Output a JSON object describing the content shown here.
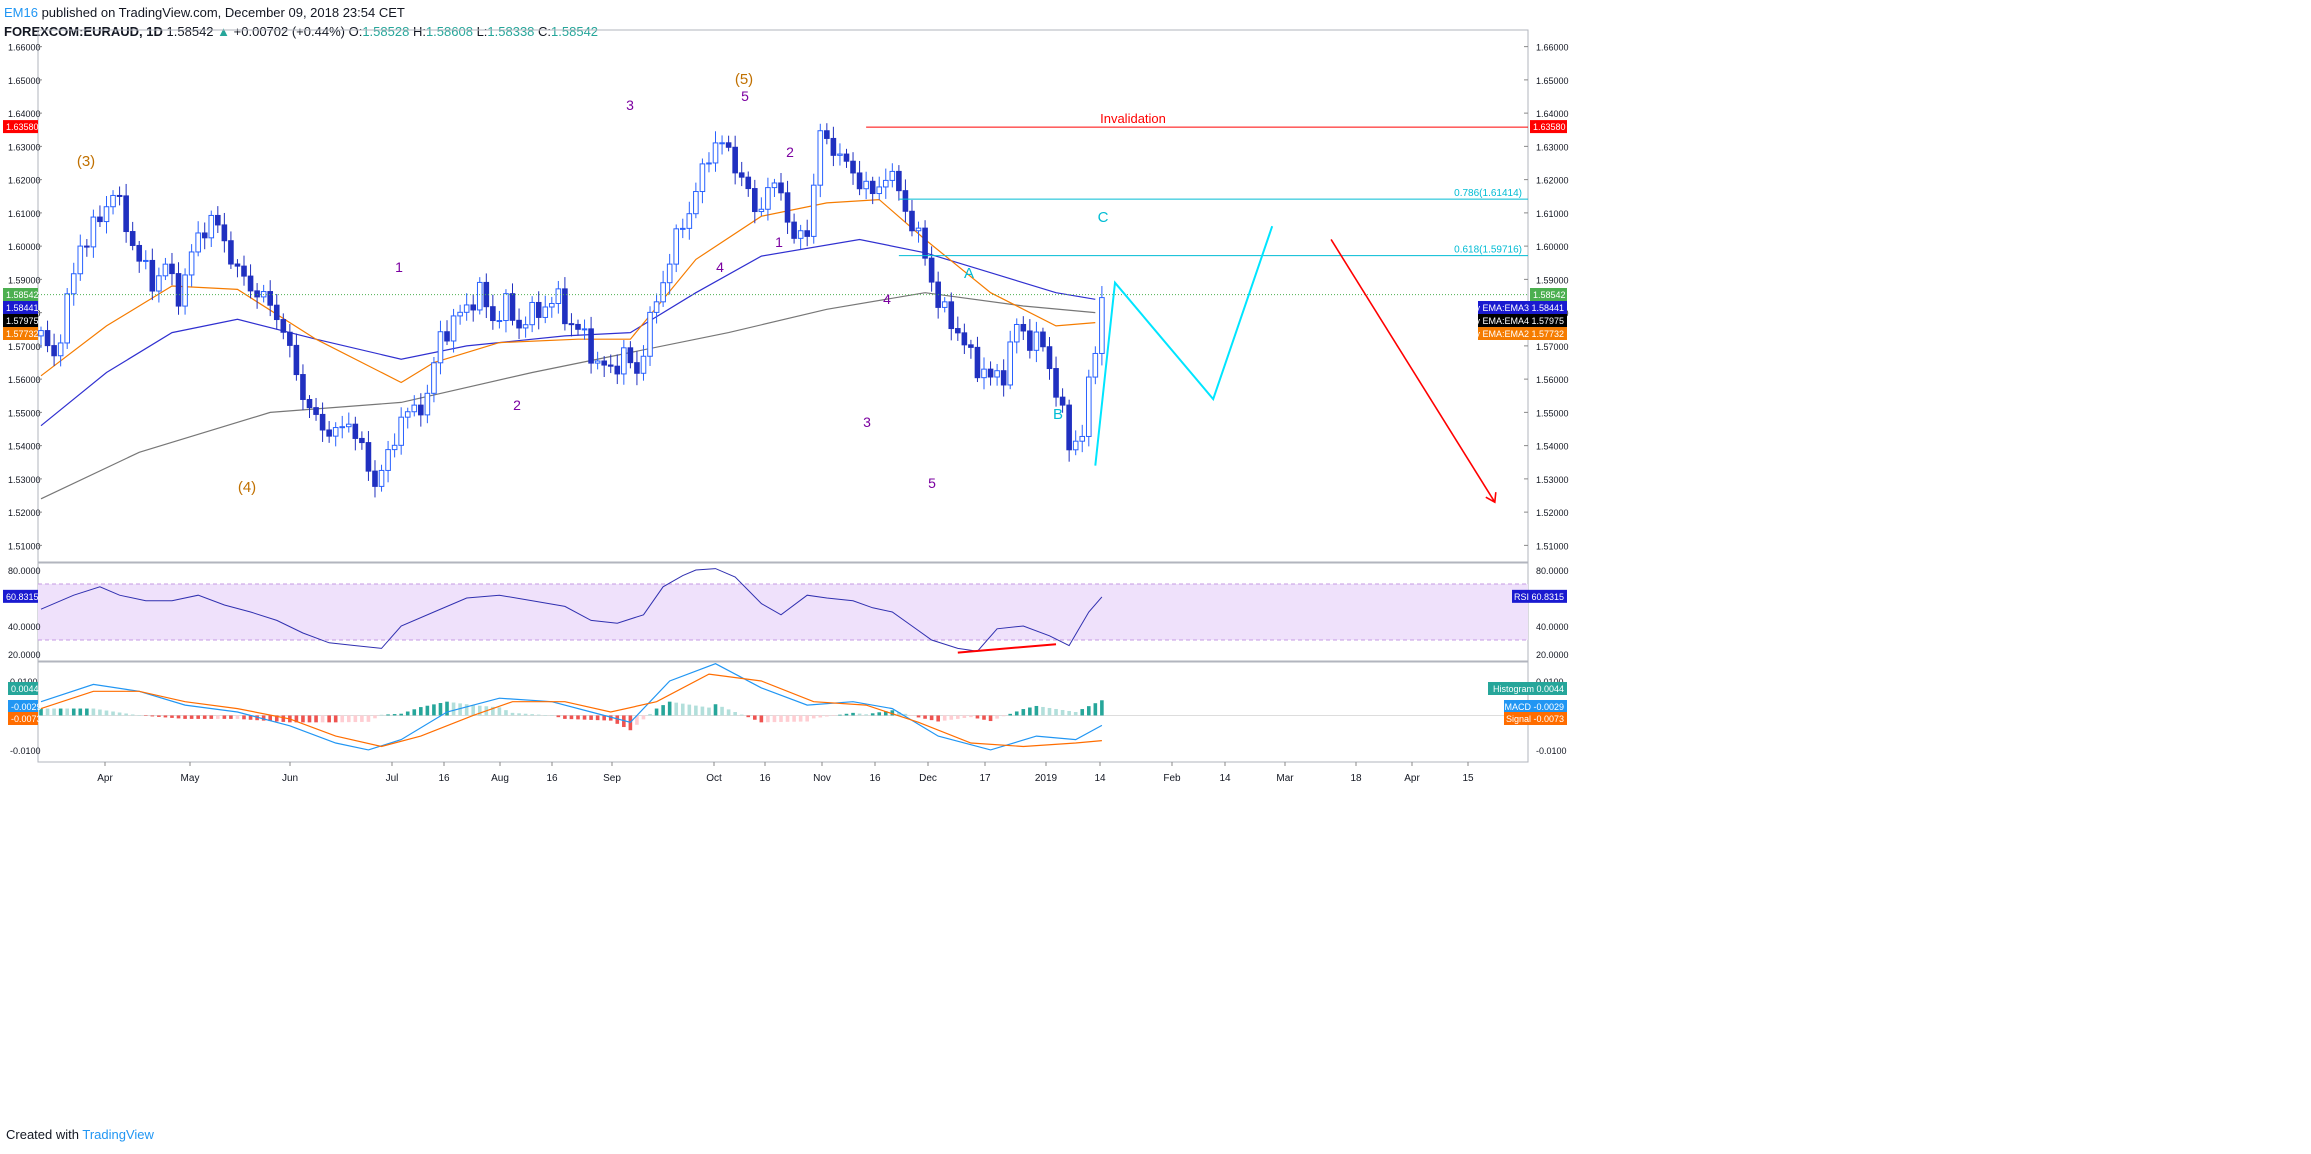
{
  "header": {
    "author": "EM16",
    "published": " published on TradingView.com, December 09, 2018 23:54 CET",
    "symbol": "FOREXCOM:EURAUD, 1D",
    "last": "1.58542",
    "arrow": "▲",
    "change": "+0.00702 (+0.44%)",
    "o_label": "O:",
    "o": "1.58528",
    "h_label": "H:",
    "h": "1.58608",
    "l_label": "L:",
    "l": "1.58338",
    "c_label": "C:",
    "c": "1.58542"
  },
  "footer": {
    "created": "Created with",
    "brand": "TradingView"
  },
  "colors": {
    "bull": "#2962ff",
    "bear": "#2030c0",
    "ema_orange": "#f57c00",
    "ema_blue": "#3030d0",
    "ema_gray": "#777777",
    "invalid": "#ff0000",
    "fib": "#00bcd4",
    "wave": "#00e5ff",
    "purple": "#7b00a0",
    "brown": "#c07000",
    "rsi": "#3030b0",
    "rsi_band": "#efe1fb",
    "macd": "#2196f3",
    "signal": "#ff6d00",
    "hist_pos": "#26a69a",
    "hist_neg": "#ef5350"
  },
  "chart_data": {
    "type": "candlestick",
    "symbol": "FOREXCOM:EURAUD",
    "interval": "1D",
    "price_axis": {
      "ylim": [
        1.505,
        1.665
      ],
      "ticks": [
        "1.66000",
        "1.65000",
        "1.64000",
        "1.63000",
        "1.62000",
        "1.61000",
        "1.60000",
        "1.59000",
        "1.58000",
        "1.57000",
        "1.56000",
        "1.55000",
        "1.54000",
        "1.53000",
        "1.52000",
        "1.51000"
      ]
    },
    "x_tick_labels": [
      "Apr",
      "May",
      "Jun",
      "Jul",
      "16",
      "Aug",
      "16",
      "Sep",
      "Oct",
      "16",
      "Nov",
      "16",
      "Dec",
      "17",
      "2019",
      "14",
      "Feb",
      "14",
      "Mar",
      "18",
      "Apr",
      "15"
    ],
    "price_tags": {
      "invalidation": "1.63580",
      "last": "1.58542",
      "ema3": "1.58441",
      "ema4": "1.57975",
      "ema2": "1.57732"
    },
    "ema_labels": {
      "ema3": "My EMA:EMA3",
      "ema4": "My EMA:EMA4",
      "ema2": "My EMA:EMA2"
    },
    "levels": [
      {
        "name": "Invalidation",
        "value": 1.6358
      },
      {
        "name": "0.786(1.61414)",
        "value": 1.61414
      },
      {
        "name": "0.618(1.59716)",
        "value": 1.59716
      }
    ],
    "waves_major": [
      "(3)",
      "(4)",
      "(5)"
    ],
    "waves_minor": [
      "1",
      "2",
      "3",
      "4",
      "5",
      "1",
      "2",
      "3",
      "4",
      "5"
    ],
    "abc": [
      "A",
      "B",
      "C"
    ],
    "ohlc_path": [
      [
        0,
        1.573
      ],
      [
        2,
        1.566
      ],
      [
        6,
        1.6
      ],
      [
        9,
        1.608
      ],
      [
        11,
        1.617
      ],
      [
        13,
        1.606
      ],
      [
        15,
        1.596
      ],
      [
        17,
        1.589
      ],
      [
        19,
        1.594
      ],
      [
        21,
        1.585
      ],
      [
        24,
        1.603
      ],
      [
        26,
        1.608
      ],
      [
        28,
        1.602
      ],
      [
        30,
        1.592
      ],
      [
        33,
        1.586
      ],
      [
        36,
        1.58
      ],
      [
        38,
        1.568
      ],
      [
        41,
        1.55
      ],
      [
        43,
        1.546
      ],
      [
        45,
        1.543
      ],
      [
        47,
        1.548
      ],
      [
        49,
        1.538
      ],
      [
        51,
        1.529
      ],
      [
        53,
        1.536
      ],
      [
        55,
        1.549
      ],
      [
        57,
        1.55
      ],
      [
        59,
        1.555
      ],
      [
        61,
        1.573
      ],
      [
        63,
        1.577
      ],
      [
        65,
        1.582
      ],
      [
        67,
        1.586
      ],
      [
        69,
        1.578
      ],
      [
        71,
        1.582
      ],
      [
        73,
        1.576
      ],
      [
        76,
        1.581
      ],
      [
        79,
        1.584
      ],
      [
        81,
        1.576
      ],
      [
        83,
        1.573
      ],
      [
        85,
        1.564
      ],
      [
        87,
        1.563
      ],
      [
        89,
        1.567
      ],
      [
        91,
        1.562
      ],
      [
        93,
        1.577
      ],
      [
        95,
        1.59
      ],
      [
        97,
        1.602
      ],
      [
        99,
        1.611
      ],
      [
        101,
        1.622
      ],
      [
        103,
        1.632
      ],
      [
        105,
        1.628
      ],
      [
        107,
        1.621
      ],
      [
        109,
        1.61
      ],
      [
        111,
        1.617
      ],
      [
        113,
        1.617
      ],
      [
        115,
        1.601
      ],
      [
        117,
        1.605
      ],
      [
        119,
        1.633
      ],
      [
        121,
        1.63
      ],
      [
        123,
        1.624
      ],
      [
        125,
        1.62
      ],
      [
        127,
        1.615
      ],
      [
        129,
        1.622
      ],
      [
        131,
        1.617
      ],
      [
        133,
        1.606
      ],
      [
        135,
        1.598
      ],
      [
        137,
        1.582
      ],
      [
        139,
        1.578
      ],
      [
        141,
        1.57
      ],
      [
        143,
        1.564
      ],
      [
        145,
        1.56
      ],
      [
        147,
        1.562
      ],
      [
        149,
        1.576
      ],
      [
        151,
        1.572
      ],
      [
        153,
        1.57
      ],
      [
        155,
        1.557
      ],
      [
        157,
        1.54
      ],
      [
        159,
        1.544
      ],
      [
        161,
        1.57
      ],
      [
        162,
        1.585
      ]
    ],
    "ema_orange": [
      [
        0,
        1.561
      ],
      [
        10,
        1.576
      ],
      [
        20,
        1.588
      ],
      [
        30,
        1.587
      ],
      [
        42,
        1.572
      ],
      [
        55,
        1.559
      ],
      [
        60,
        1.565
      ],
      [
        70,
        1.571
      ],
      [
        82,
        1.572
      ],
      [
        90,
        1.572
      ],
      [
        100,
        1.596
      ],
      [
        110,
        1.609
      ],
      [
        120,
        1.613
      ],
      [
        128,
        1.614
      ],
      [
        135,
        1.602
      ],
      [
        145,
        1.586
      ],
      [
        155,
        1.576
      ],
      [
        161,
        1.577
      ]
    ],
    "ema_blue": [
      [
        0,
        1.546
      ],
      [
        10,
        1.562
      ],
      [
        20,
        1.574
      ],
      [
        30,
        1.578
      ],
      [
        42,
        1.572
      ],
      [
        55,
        1.566
      ],
      [
        65,
        1.57
      ],
      [
        80,
        1.573
      ],
      [
        90,
        1.574
      ],
      [
        100,
        1.586
      ],
      [
        110,
        1.597
      ],
      [
        125,
        1.602
      ],
      [
        135,
        1.598
      ],
      [
        145,
        1.592
      ],
      [
        155,
        1.586
      ],
      [
        161,
        1.584
      ]
    ],
    "ema_gray": [
      [
        0,
        1.524
      ],
      [
        15,
        1.538
      ],
      [
        35,
        1.55
      ],
      [
        55,
        1.553
      ],
      [
        75,
        1.562
      ],
      [
        90,
        1.568
      ],
      [
        105,
        1.574
      ],
      [
        120,
        1.581
      ],
      [
        135,
        1.586
      ],
      [
        150,
        1.582
      ],
      [
        161,
        1.58
      ]
    ],
    "forecast_path": [
      [
        161,
        1.534
      ],
      [
        164,
        1.589
      ],
      [
        179,
        1.554
      ],
      [
        188,
        1.606
      ]
    ],
    "bear_arrow": [
      [
        197,
        1.602
      ],
      [
        222,
        1.523
      ]
    ],
    "rsi": {
      "label": "RSI",
      "value": "60.8315",
      "ticks": [
        "80.0000",
        "40.0000",
        "20.0000"
      ],
      "ylim": [
        15,
        85
      ],
      "band": [
        30,
        70
      ],
      "path": [
        [
          0,
          52
        ],
        [
          5,
          62
        ],
        [
          9,
          68
        ],
        [
          12,
          62
        ],
        [
          16,
          58
        ],
        [
          20,
          58
        ],
        [
          24,
          62
        ],
        [
          28,
          55
        ],
        [
          32,
          50
        ],
        [
          36,
          44
        ],
        [
          40,
          35
        ],
        [
          44,
          28
        ],
        [
          48,
          26
        ],
        [
          52,
          24
        ],
        [
          55,
          40
        ],
        [
          60,
          50
        ],
        [
          65,
          60
        ],
        [
          70,
          62
        ],
        [
          75,
          58
        ],
        [
          80,
          54
        ],
        [
          84,
          44
        ],
        [
          88,
          42
        ],
        [
          92,
          48
        ],
        [
          95,
          68
        ],
        [
          98,
          76
        ],
        [
          100,
          80
        ],
        [
          103,
          81
        ],
        [
          106,
          75
        ],
        [
          110,
          56
        ],
        [
          113,
          48
        ],
        [
          117,
          62
        ],
        [
          120,
          60
        ],
        [
          124,
          58
        ],
        [
          127,
          53
        ],
        [
          130,
          50
        ],
        [
          133,
          40
        ],
        [
          136,
          30
        ],
        [
          140,
          24
        ],
        [
          143,
          22
        ],
        [
          146,
          38
        ],
        [
          150,
          40
        ],
        [
          154,
          33
        ],
        [
          157,
          26
        ],
        [
          160,
          50
        ],
        [
          162,
          60.8
        ]
      ],
      "divergence": [
        [
          140,
          21
        ],
        [
          155,
          27
        ]
      ]
    },
    "macd": {
      "ticks": [
        "0.0100",
        "-0.0100"
      ],
      "ylim": [
        -0.0135,
        0.0155
      ],
      "histogram_label": "Histogram",
      "histogram_value": "0.0044",
      "macd_label": "MACD",
      "macd_value": "-0.0029",
      "signal_label": "Signal",
      "signal_value": "-0.0073",
      "macd_path": [
        [
          0,
          0.004
        ],
        [
          8,
          0.009
        ],
        [
          15,
          0.007
        ],
        [
          22,
          0.003
        ],
        [
          30,
          0.001
        ],
        [
          38,
          -0.003
        ],
        [
          45,
          -0.008
        ],
        [
          50,
          -0.01
        ],
        [
          55,
          -0.007
        ],
        [
          62,
          0.001
        ],
        [
          70,
          0.005
        ],
        [
          78,
          0.004
        ],
        [
          84,
          0.001
        ],
        [
          90,
          -0.002
        ],
        [
          96,
          0.01
        ],
        [
          103,
          0.015
        ],
        [
          110,
          0.008
        ],
        [
          117,
          0.003
        ],
        [
          124,
          0.004
        ],
        [
          130,
          0.002
        ],
        [
          137,
          -0.006
        ],
        [
          145,
          -0.01
        ],
        [
          152,
          -0.006
        ],
        [
          158,
          -0.007
        ],
        [
          162,
          -0.0029
        ]
      ],
      "signal_path": [
        [
          0,
          0.002
        ],
        [
          8,
          0.007
        ],
        [
          15,
          0.007
        ],
        [
          22,
          0.004
        ],
        [
          30,
          0.002
        ],
        [
          38,
          -0.001
        ],
        [
          45,
          -0.006
        ],
        [
          52,
          -0.009
        ],
        [
          58,
          -0.006
        ],
        [
          66,
          0
        ],
        [
          72,
          0.004
        ],
        [
          80,
          0.004
        ],
        [
          87,
          0.001
        ],
        [
          94,
          0.004
        ],
        [
          102,
          0.012
        ],
        [
          110,
          0.01
        ],
        [
          118,
          0.004
        ],
        [
          126,
          0.003
        ],
        [
          134,
          -0.002
        ],
        [
          142,
          -0.008
        ],
        [
          150,
          -0.009
        ],
        [
          158,
          -0.008
        ],
        [
          162,
          -0.0073
        ]
      ]
    }
  }
}
